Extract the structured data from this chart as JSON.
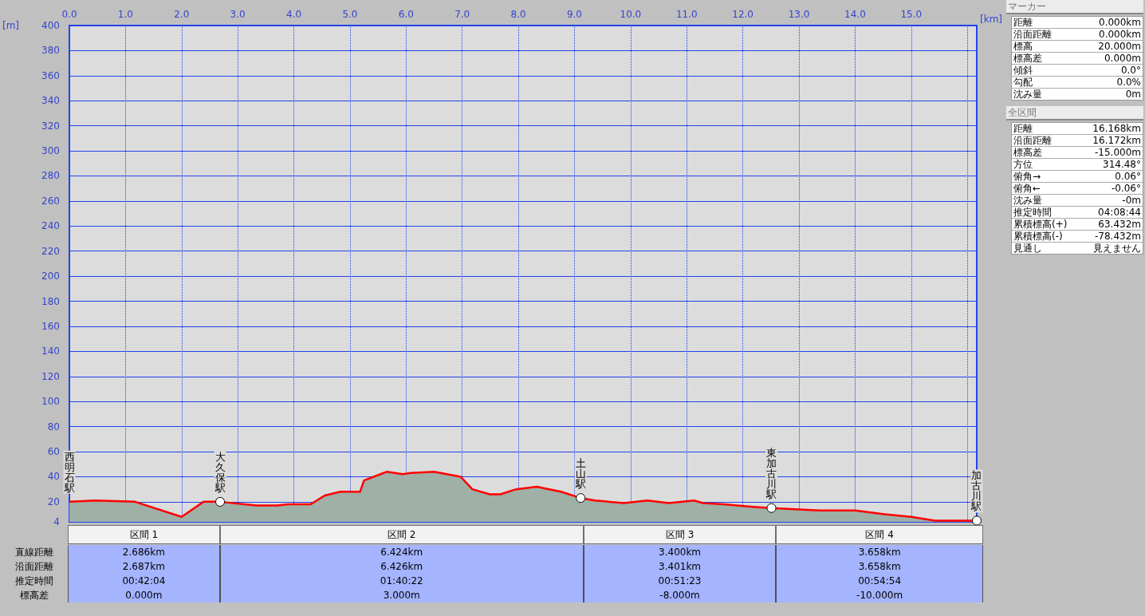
{
  "chart_data": [
    {
      "type": "area",
      "xlabel": "[km]",
      "ylabel": "[m]",
      "xlim": [
        0,
        16.168
      ],
      "ylim": [
        4,
        400
      ],
      "xticks": [
        {
          "value": 0,
          "label": "0.0"
        },
        {
          "value": 1,
          "label": "1.0"
        },
        {
          "value": 2,
          "label": "2.0"
        },
        {
          "value": 3,
          "label": "3.0"
        },
        {
          "value": 4,
          "label": "4.0"
        },
        {
          "value": 5,
          "label": "5.0"
        },
        {
          "value": 6,
          "label": "6.0"
        },
        {
          "value": 7,
          "label": "7.0"
        },
        {
          "value": 8,
          "label": "8.0"
        },
        {
          "value": 9,
          "label": "9.0"
        },
        {
          "value": 10,
          "label": "10.0"
        },
        {
          "value": 11,
          "label": "11.0"
        },
        {
          "value": 12,
          "label": "12.0"
        },
        {
          "value": 13,
          "label": "13.0"
        },
        {
          "value": 14,
          "label": "14.0"
        },
        {
          "value": 15,
          "label": "15.0"
        },
        {
          "value": 16,
          "label": null
        }
      ],
      "yticks": [
        4,
        20,
        40,
        60,
        80,
        100,
        120,
        140,
        160,
        180,
        200,
        220,
        240,
        260,
        280,
        300,
        320,
        340,
        360,
        380,
        400
      ],
      "grid": true,
      "line_style": "solid",
      "series": [
        {
          "type": "area",
          "color": "#ff0000",
          "marker": "none",
          "x": [
            0,
            0.47,
            1.17,
            2.0,
            2.39,
            2.686,
            3.33,
            3.7,
            3.9,
            4.3,
            4.55,
            4.83,
            5.18,
            5.25,
            5.6,
            5.66,
            5.94,
            6.08,
            6.5,
            6.97,
            7.18,
            7.49,
            7.68,
            7.96,
            8.33,
            8.76,
            9.11,
            9.37,
            9.88,
            10.3,
            10.68,
            11.13,
            11.29,
            11.66,
            12.18,
            12.51,
            13.4,
            14.0,
            14.53,
            15.0,
            15.42,
            15.85,
            16.168
          ],
          "values": [
            20,
            21,
            20,
            8,
            20,
            20,
            17,
            17,
            18,
            18,
            25,
            28,
            28,
            37,
            43,
            44,
            42,
            43,
            44,
            40,
            30,
            26,
            26,
            30,
            32,
            28,
            23,
            21,
            19,
            21,
            19,
            21,
            19,
            18,
            16,
            15,
            13,
            13,
            10,
            8,
            5,
            5,
            5
          ]
        },
        {
          "type": "scatter",
          "color": "#ffffff",
          "marker": "circle",
          "x": [
            2.686,
            9.11,
            12.51,
            16.168
          ],
          "values": [
            20,
            23,
            15,
            5
          ]
        }
      ],
      "annotations": [
        {
          "text": "西明石駅",
          "x": 0,
          "y": 20
        },
        {
          "text": "大久保駅",
          "x": 2.686,
          "y": 20
        },
        {
          "text": "土山駅",
          "x": 9.11,
          "y": 23
        },
        {
          "text": "東加古川駅",
          "x": 12.51,
          "y": 15
        },
        {
          "text": "加古川駅",
          "x": 16.168,
          "y": 5
        },
        "区間 1",
        "区間 2",
        "区間 3",
        "区間 4",
        "直線距離",
        "2.686km",
        "6.424km",
        "3.400km",
        "3.658km",
        "沿面距離",
        "2.687km",
        "6.426km",
        "3.401km",
        "3.658km",
        "推定時間",
        "00:42:04",
        "01:40:22",
        "00:51:23",
        "00:54:54",
        "標高差",
        "0.000m",
        "3.000m",
        "-8.000m",
        "-10.000m"
      ]
    },
    {
      "type": "other",
      "title": "マーカー",
      "annotations": [
        "距離",
        "0.000km",
        "沿面距離",
        "0.000km",
        "標高",
        "20.000m",
        "標高差",
        "0.000m",
        "傾斜",
        "0.0°",
        "勾配",
        "0.0%",
        "沈み量",
        "0m"
      ]
    },
    {
      "type": "other",
      "title": "全区間",
      "annotations": [
        "距離",
        "16.168km",
        "沿面距離",
        "16.172km",
        "標高差",
        "-15.000m",
        "方位",
        "314.48°",
        "俯角→",
        "0.06°",
        "俯角←",
        "-0.06°",
        "沈み量",
        "-0m",
        "推定時間",
        "04:08:44",
        "累積標高(+)",
        "63.432m",
        "累積標高(-)",
        "-78.432m",
        "見通し",
        "見えません"
      ]
    }
  ]
}
